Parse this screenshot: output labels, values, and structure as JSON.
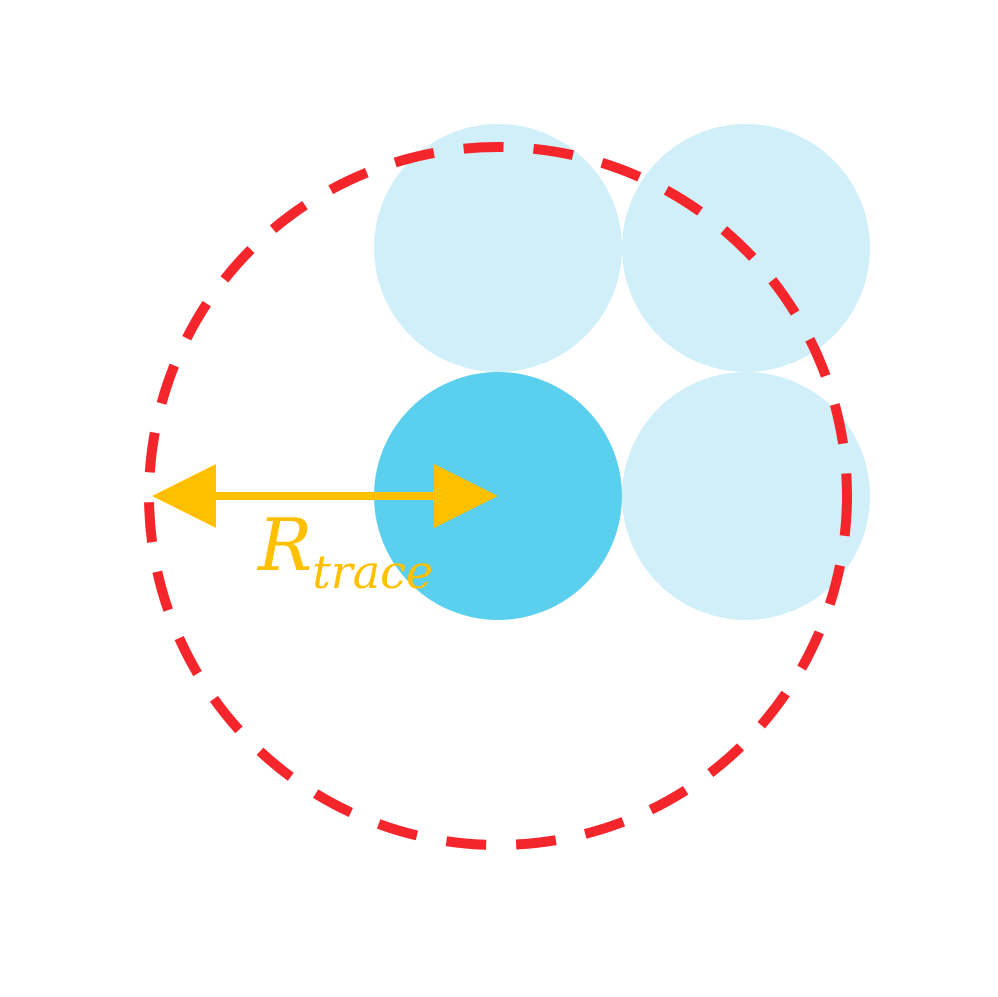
{
  "label": {
    "main": "R",
    "subscript": "trace"
  },
  "colors": {
    "background": "#ffffff",
    "central_sphere": "#5bcfee",
    "neighbor_sphere": "#d0eff8",
    "trace_circle": "#f5262b",
    "radius_arrow": "#ffc000"
  }
}
